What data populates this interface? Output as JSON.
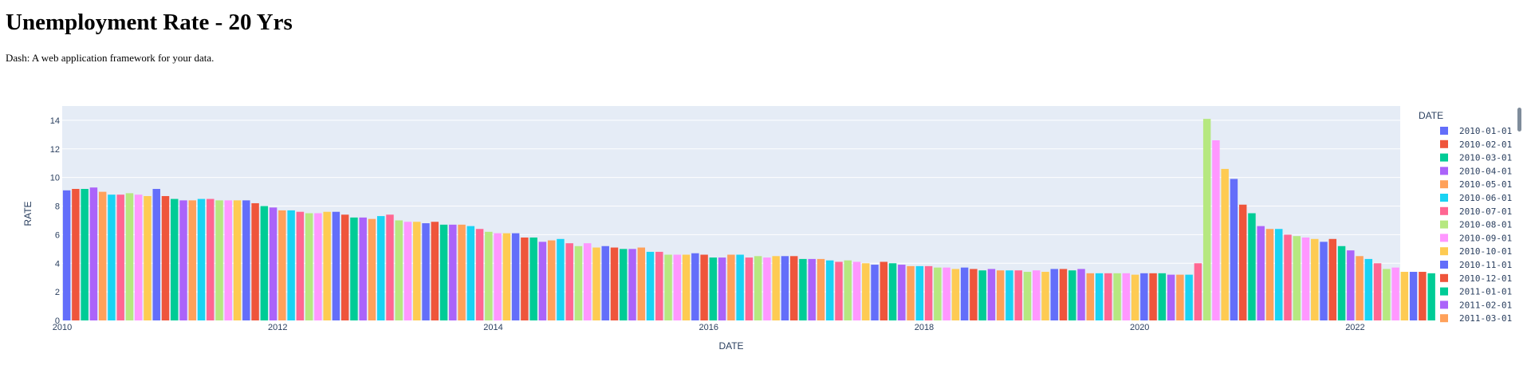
{
  "page": {
    "title": "Unemployment Rate - 20 Yrs",
    "subtitle": "Dash: A web application framework for your data."
  },
  "colors": {
    "palette": [
      "#636efa",
      "#EF553B",
      "#00cc96",
      "#ab63fa",
      "#FFA15A",
      "#19d3f3",
      "#FF6692",
      "#B6E880",
      "#FF97FF",
      "#FECB52"
    ],
    "plot_bg": "#e5ecf6",
    "grid": "#ffffff",
    "text": "#2a3f5f",
    "scrollbar": "#7f8c9b"
  },
  "chart_data": {
    "type": "bar",
    "title": "",
    "xlabel": "DATE",
    "ylabel": "RATE",
    "ylim": [
      0,
      15
    ],
    "yticks": [
      0,
      2,
      4,
      6,
      8,
      10,
      12,
      14
    ],
    "xticks": [
      "2010",
      "2012",
      "2014",
      "2016",
      "2018",
      "2020",
      "2022"
    ],
    "grid": true,
    "legend_title": "DATE",
    "legend_position": "right",
    "legend_visible_entries": [
      "2010-01-01",
      "2010-02-01",
      "2010-03-01",
      "2010-04-01",
      "2010-05-01",
      "2010-06-01",
      "2010-07-01",
      "2010-08-01",
      "2010-09-01",
      "2010-10-01",
      "2010-11-01",
      "2010-12-01",
      "2011-01-01",
      "2011-02-01",
      "2011-03-01"
    ],
    "start_month": "2010-01",
    "values": [
      9.1,
      9.2,
      9.2,
      9.3,
      9.0,
      8.8,
      8.8,
      8.9,
      8.8,
      8.7,
      9.2,
      8.7,
      8.5,
      8.4,
      8.4,
      8.5,
      8.5,
      8.4,
      8.4,
      8.4,
      8.4,
      8.2,
      8.0,
      7.9,
      7.7,
      7.7,
      7.6,
      7.5,
      7.5,
      7.6,
      7.6,
      7.4,
      7.2,
      7.2,
      7.1,
      7.3,
      7.4,
      7.0,
      6.9,
      6.9,
      6.8,
      6.9,
      6.7,
      6.7,
      6.7,
      6.6,
      6.4,
      6.2,
      6.1,
      6.1,
      6.1,
      5.8,
      5.8,
      5.5,
      5.6,
      5.7,
      5.4,
      5.2,
      5.4,
      5.1,
      5.2,
      5.1,
      5.0,
      5.0,
      5.1,
      4.8,
      4.8,
      4.6,
      4.6,
      4.6,
      4.7,
      4.6,
      4.4,
      4.4,
      4.6,
      4.6,
      4.4,
      4.5,
      4.4,
      4.5,
      4.5,
      4.5,
      4.3,
      4.3,
      4.3,
      4.2,
      4.1,
      4.2,
      4.1,
      4.0,
      3.9,
      4.1,
      4.0,
      3.9,
      3.8,
      3.8,
      3.8,
      3.7,
      3.7,
      3.6,
      3.7,
      3.6,
      3.5,
      3.6,
      3.5,
      3.5,
      3.5,
      3.4,
      3.5,
      3.4,
      3.6,
      3.6,
      3.5,
      3.6,
      3.3,
      3.3,
      3.3,
      3.3,
      3.3,
      3.2,
      3.3,
      3.3,
      3.3,
      3.2,
      3.2,
      3.2,
      4.0,
      14.1,
      12.6,
      10.6,
      9.9,
      8.1,
      7.5,
      6.6,
      6.4,
      6.4,
      6.0,
      5.9,
      5.8,
      5.7,
      5.5,
      5.7,
      5.2,
      4.9,
      4.5,
      4.3,
      4.0,
      3.6,
      3.7,
      3.4,
      3.4,
      3.4,
      3.3
    ]
  }
}
